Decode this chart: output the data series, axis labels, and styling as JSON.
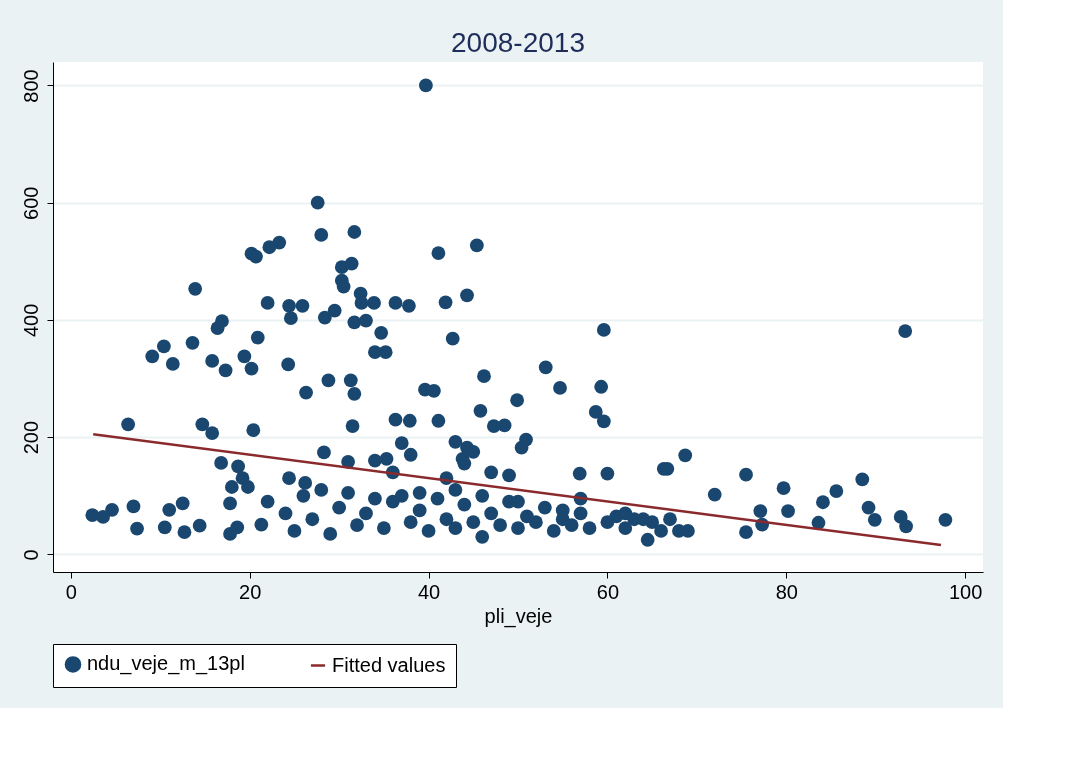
{
  "chart_data": {
    "type": "scatter",
    "title": "2008-2013",
    "xlabel": "pli_veje",
    "xlim": [
      -2,
      102
    ],
    "ylim": [
      -30,
      840
    ],
    "xticks": [
      0,
      20,
      40,
      60,
      80,
      100
    ],
    "yticks": [
      0,
      200,
      400,
      600,
      800
    ],
    "grid": "y",
    "legend": "bottom",
    "series": [
      {
        "name": "ndu_veje_m_13pl",
        "color": "#1a476f",
        "marker": "circle",
        "x": [
          39.7,
          27.6,
          31.7,
          28,
          23.3,
          22.2,
          45.4,
          41.1,
          20.2,
          20.7,
          31.4,
          30.3,
          30.3,
          30.5,
          13.9,
          32.4,
          41.9,
          44.3,
          36.3,
          37.8,
          33.9,
          25.9,
          24.4,
          22,
          24.6,
          28.4,
          32.5,
          29.5,
          31.7,
          33,
          34.7,
          34,
          35.2,
          42.7,
          20.9,
          13.6,
          10.4,
          9.1,
          11.4,
          15.8,
          17.3,
          19.4,
          20.2,
          16.4,
          16.9,
          59.6,
          93.3,
          46.2,
          31.3,
          28.8,
          24.3,
          53.1,
          54.7,
          59.3,
          40.6,
          39.6,
          49.9,
          58.7,
          31.7,
          26.3,
          36.3,
          37.9,
          41.1,
          6.4,
          14.7,
          15.8,
          20.4,
          45.8,
          48.5,
          47.3,
          50.9,
          31.5,
          44.3,
          43.8,
          59.6,
          68.7,
          66.7,
          66.3,
          56.9,
          60,
          75.5,
          88.5,
          79.7,
          85.6,
          84.1,
          89.2,
          77.1,
          80.2,
          83.6,
          89.9,
          92.8,
          93.4,
          97.8,
          75.5,
          77.3,
          64.5,
          72,
          50.4,
          35.3,
          31,
          28.3,
          18.7,
          16.8,
          19.2,
          19.8,
          24.4,
          26.2,
          18,
          7,
          4.6,
          2.4,
          3.6,
          11,
          12.5,
          10.5,
          7.4,
          12.7,
          14.4,
          17.8,
          18.6,
          17.8,
          21.3,
          25,
          27,
          29,
          30,
          32,
          33,
          35,
          36,
          38,
          39,
          40,
          41,
          42,
          43,
          44,
          45,
          46,
          47,
          48,
          49,
          50,
          51,
          52,
          53,
          54,
          55,
          56,
          57,
          58,
          60,
          61,
          62,
          63,
          65,
          66,
          67,
          68,
          22,
          24,
          26,
          28,
          31,
          34,
          37,
          39,
          43,
          46,
          50,
          55,
          57,
          62,
          64,
          69,
          42,
          44,
          47,
          49,
          34,
          36,
          38,
          43,
          45,
          37
        ],
        "values": [
          800,
          600,
          550,
          545,
          532,
          524,
          527,
          514,
          513,
          508,
          496,
          490,
          467,
          457,
          453,
          445,
          430,
          442,
          429,
          424,
          429,
          424,
          424,
          429,
          403,
          404,
          429,
          416,
          396,
          399,
          378,
          345,
          345,
          368,
          370,
          361,
          355,
          338,
          325,
          330,
          314,
          338,
          317,
          386,
          398,
          383,
          381,
          304,
          297,
          297,
          324,
          319,
          284,
          286,
          279,
          281,
          263,
          243,
          274,
          276,
          230,
          228,
          228,
          222,
          222,
          207,
          212,
          245,
          220,
          219,
          196,
          219,
          182,
          163,
          227,
          169,
          146,
          146,
          138,
          138,
          136,
          128,
          113,
          108,
          89,
          80,
          74,
          74,
          54,
          59,
          64,
          48,
          59,
          38,
          51,
          25,
          102,
          182,
          163,
          158,
          174,
          150,
          156,
          130,
          115,
          130,
          122,
          115,
          82,
          76,
          67,
          64,
          76,
          87,
          46,
          44,
          38,
          49,
          87,
          46,
          35,
          51,
          40,
          60,
          35,
          80,
          50,
          70,
          45,
          90,
          55,
          75,
          40,
          95,
          60,
          45,
          85,
          55,
          30,
          70,
          50,
          90,
          45,
          65,
          55,
          80,
          40,
          60,
          50,
          70,
          45,
          55,
          65,
          45,
          60,
          55,
          40,
          60,
          40,
          90,
          70,
          100,
          110,
          105,
          95,
          100,
          105,
          110,
          100,
          90,
          75,
          95,
          70,
          60,
          40,
          130,
          155,
          140,
          135,
          160,
          140,
          170,
          192,
          175,
          190
        ]
      },
      {
        "name": "Fitted values",
        "type": "line",
        "marker": "none",
        "color": "#8b2a2d",
        "x": [
          2.5,
          97.3
        ],
        "values": [
          205,
          16
        ]
      }
    ]
  }
}
